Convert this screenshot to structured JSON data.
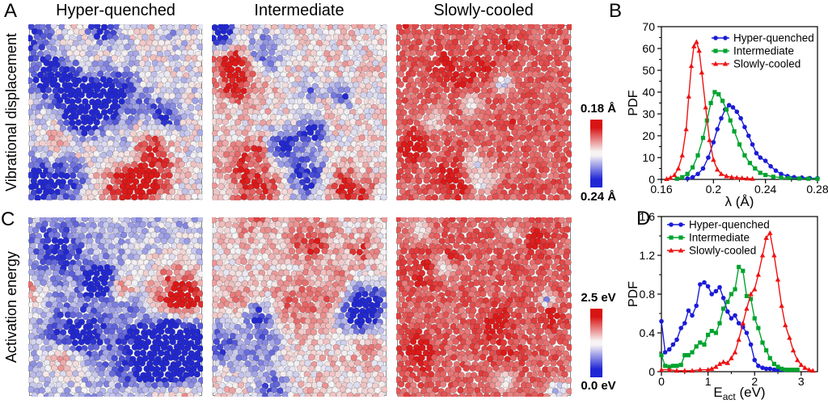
{
  "figure": {
    "column_titles": [
      "Hyper-quenched",
      "Intermediate",
      "Slowly-cooled"
    ],
    "rows": [
      {
        "letter": "A",
        "label": "Vibrational displacement",
        "colorbar": {
          "top": "0.18 Å",
          "bottom": "0.24 Å"
        }
      },
      {
        "letter": "C",
        "label": "Activation energy",
        "colorbar": {
          "top": "2.5 eV",
          "bottom": "0.0 eV"
        }
      }
    ],
    "plot_letters": {
      "top": "B",
      "bottom": "D"
    }
  },
  "colors": {
    "hyper_quenched": "#1b1bd8",
    "intermediate": "#00a32e",
    "slowly_cooled": "#ee1212",
    "map_blue": "#2228d0",
    "map_white": "#f7f5f5",
    "map_red": "#dd1818",
    "frame_gray": "#8a8a8a",
    "axis_black": "#000000"
  },
  "particle_panels": [
    {
      "name": "A-hyper-quenched",
      "row": 0,
      "col": 0,
      "description": "mixed field, blue-dominant with red clusters",
      "seed": 7,
      "base": 0.46,
      "pos_blobs": 8,
      "neg_blobs": 12,
      "pos_amp": 0.42,
      "neg_amp": 0.6,
      "r_min": 10,
      "r_max": 30,
      "noise": 0.17
    },
    {
      "name": "A-intermediate",
      "row": 0,
      "col": 1,
      "description": "balanced red/blue with strong blue clusters",
      "seed": 13,
      "base": 0.56,
      "pos_blobs": 9,
      "neg_blobs": 9,
      "pos_amp": 0.38,
      "neg_amp": 0.62,
      "r_min": 9,
      "r_max": 26,
      "noise": 0.16
    },
    {
      "name": "A-slowly-cooled",
      "row": 0,
      "col": 2,
      "description": "almost entirely red, few pale spots",
      "seed": 21,
      "base": 0.84,
      "pos_blobs": 10,
      "neg_blobs": 5,
      "pos_amp": 0.18,
      "neg_amp": 0.5,
      "r_min": 6,
      "r_max": 13,
      "noise": 0.09
    },
    {
      "name": "C-hyper-quenched",
      "row": 1,
      "col": 0,
      "description": "mostly blue/light blue with sparse pink patches",
      "seed": 31,
      "base": 0.37,
      "pos_blobs": 7,
      "neg_blobs": 11,
      "pos_amp": 0.45,
      "neg_amp": 0.5,
      "r_min": 10,
      "r_max": 30,
      "noise": 0.15
    },
    {
      "name": "C-intermediate",
      "row": 1,
      "col": 1,
      "description": "red-dominant with several deep blue clusters",
      "seed": 41,
      "base": 0.58,
      "pos_blobs": 9,
      "neg_blobs": 6,
      "pos_amp": 0.36,
      "neg_amp": 0.62,
      "r_min": 9,
      "r_max": 24,
      "noise": 0.15
    },
    {
      "name": "C-slowly-cooled",
      "row": 1,
      "col": 2,
      "description": "almost entirely red, few white patches",
      "seed": 51,
      "base": 0.84,
      "pos_blobs": 10,
      "neg_blobs": 6,
      "pos_amp": 0.18,
      "neg_amp": 0.5,
      "r_min": 6,
      "r_max": 14,
      "noise": 0.09
    }
  ],
  "chart_data": [
    {
      "id": "B",
      "type": "line",
      "title": "",
      "xlabel": "λ (Å)",
      "ylabel": "PDF",
      "xlim": [
        0.16,
        0.28
      ],
      "ylim": [
        0,
        70
      ],
      "xticks": [
        0.16,
        0.2,
        0.24,
        0.28
      ],
      "xtick_labels": [
        "0.16",
        "0.2",
        "0.24",
        "0.28"
      ],
      "x_minor_ticks": [
        0.18,
        0.22,
        0.26
      ],
      "yticks": [
        0,
        10,
        20,
        30,
        40,
        50,
        60,
        70
      ],
      "ytick_labels": [
        "0",
        "10",
        "20",
        "30",
        "40",
        "50",
        "60",
        "70"
      ],
      "y_minor_ticks": [
        5,
        15,
        25,
        35,
        45,
        55,
        65
      ],
      "grid": false,
      "legend_pos": "top-right",
      "series": [
        {
          "name": "Hyper-quenched",
          "color": "#1b1bd8",
          "marker": "circle",
          "x": [
            0.18,
            0.184,
            0.188,
            0.192,
            0.196,
            0.2,
            0.203,
            0.206,
            0.209,
            0.212,
            0.215,
            0.218,
            0.221,
            0.224,
            0.227,
            0.23,
            0.233,
            0.236,
            0.24,
            0.244,
            0.248,
            0.252,
            0.257,
            0.262,
            0.268,
            0.274,
            0.28
          ],
          "y": [
            0.4,
            1,
            2.5,
            5,
            10,
            17,
            23,
            28,
            32,
            34,
            33,
            31,
            28,
            24,
            20,
            16,
            12,
            10,
            8.5,
            6,
            4,
            2.5,
            1.5,
            1,
            0.8,
            0.6,
            0.5
          ]
        },
        {
          "name": "Intermediate",
          "color": "#00a32e",
          "marker": "square",
          "x": [
            0.172,
            0.176,
            0.18,
            0.184,
            0.188,
            0.192,
            0.195,
            0.198,
            0.201,
            0.204,
            0.207,
            0.21,
            0.213,
            0.216,
            0.22,
            0.224,
            0.228,
            0.232,
            0.236,
            0.24,
            0.246,
            0.252,
            0.258,
            0.266,
            0.273,
            0.28
          ],
          "y": [
            0.3,
            1,
            2.5,
            5.5,
            11,
            19,
            27,
            35,
            40,
            39,
            36,
            32,
            27,
            22,
            16,
            11,
            7.5,
            5,
            3,
            2,
            1.2,
            0.8,
            0.6,
            0.4,
            0.3,
            0.3
          ]
        },
        {
          "name": "Slowly-cooled",
          "color": "#ee1212",
          "marker": "triangle",
          "x": [
            0.164,
            0.167,
            0.17,
            0.173,
            0.176,
            0.179,
            0.181,
            0.183,
            0.185,
            0.187,
            0.189,
            0.191,
            0.194,
            0.197,
            0.2,
            0.203,
            0.206,
            0.21,
            0.214,
            0.218,
            0.222,
            0.226,
            0.23
          ],
          "y": [
            0.2,
            0.8,
            2,
            5,
            11,
            23,
            38,
            52,
            61,
            63,
            59,
            49,
            33,
            18,
            9,
            4.5,
            2.5,
            1.5,
            1,
            0.8,
            0.6,
            0.4,
            0.3
          ]
        }
      ]
    },
    {
      "id": "D",
      "type": "line",
      "title": "",
      "xlabel": "E_act (eV)",
      "ylabel": "PDF",
      "xlim": [
        0,
        3.35
      ],
      "ylim": [
        0,
        1.6
      ],
      "xticks": [
        0,
        1,
        2,
        3
      ],
      "xtick_labels": [
        "0",
        "1",
        "2",
        "3"
      ],
      "x_minor_ticks": [
        0.5,
        1.5,
        2.5
      ],
      "yticks": [
        0,
        0.4,
        0.8,
        1.2,
        1.6
      ],
      "ytick_labels": [
        "0",
        "0.4",
        "0.8",
        "1.2",
        "1.6"
      ],
      "y_minor_ticks": [
        0.2,
        0.6,
        1.0,
        1.4
      ],
      "grid": false,
      "legend_pos": "top-left",
      "series": [
        {
          "name": "Hyper-quenched",
          "color": "#1b1bd8",
          "marker": "circle",
          "x": [
            0.0,
            0.08,
            0.17,
            0.25,
            0.33,
            0.42,
            0.5,
            0.58,
            0.66,
            0.75,
            0.83,
            0.92,
            1.0,
            1.08,
            1.17,
            1.25,
            1.33,
            1.42,
            1.5,
            1.58,
            1.66,
            1.75,
            1.83,
            1.92,
            2.0,
            2.08,
            2.17,
            2.25,
            2.33,
            2.42,
            2.5,
            2.58,
            2.66
          ],
          "y": [
            0.52,
            0.2,
            0.23,
            0.28,
            0.33,
            0.45,
            0.5,
            0.63,
            0.58,
            0.68,
            0.9,
            0.92,
            0.88,
            0.8,
            0.83,
            0.87,
            0.76,
            0.62,
            0.55,
            0.58,
            0.5,
            0.46,
            0.4,
            0.28,
            0.12,
            0.06,
            0.04,
            0.03,
            0.03,
            0.02,
            0.02,
            0.02,
            0.02
          ]
        },
        {
          "name": "Intermediate",
          "color": "#00a32e",
          "marker": "square",
          "x": [
            0.0,
            0.08,
            0.17,
            0.25,
            0.33,
            0.42,
            0.5,
            0.58,
            0.66,
            0.75,
            0.83,
            0.92,
            1.0,
            1.08,
            1.17,
            1.25,
            1.33,
            1.42,
            1.5,
            1.58,
            1.66,
            1.75,
            1.83,
            1.92,
            2.0,
            2.08,
            2.17,
            2.25,
            2.33,
            2.42,
            2.5,
            2.58,
            2.66,
            2.75,
            2.83,
            2.92
          ],
          "y": [
            0.17,
            0.06,
            0.05,
            0.06,
            0.06,
            0.07,
            0.17,
            0.17,
            0.2,
            0.26,
            0.3,
            0.28,
            0.38,
            0.42,
            0.4,
            0.5,
            0.65,
            0.72,
            0.8,
            0.85,
            1.08,
            1.04,
            0.78,
            0.75,
            0.55,
            0.45,
            0.3,
            0.22,
            0.14,
            0.08,
            0.05,
            0.03,
            0.02,
            0.02,
            0.02,
            0.02
          ]
        },
        {
          "name": "Slowly-cooled",
          "color": "#ee1212",
          "marker": "triangle",
          "x": [
            0.0,
            0.17,
            0.33,
            0.5,
            0.66,
            0.83,
            1.0,
            1.08,
            1.17,
            1.25,
            1.33,
            1.42,
            1.5,
            1.58,
            1.66,
            1.75,
            1.83,
            1.92,
            2.0,
            2.08,
            2.17,
            2.25,
            2.33,
            2.42,
            2.5,
            2.58,
            2.66,
            2.75,
            2.83,
            2.92,
            3.0,
            3.08,
            3.17,
            3.25
          ],
          "y": [
            0.02,
            0.02,
            0.01,
            0.01,
            0.01,
            0.02,
            0.02,
            0.03,
            0.05,
            0.08,
            0.1,
            0.09,
            0.14,
            0.2,
            0.33,
            0.5,
            0.65,
            0.8,
            0.85,
            1.0,
            1.2,
            1.38,
            1.43,
            1.2,
            0.95,
            0.68,
            0.48,
            0.35,
            0.22,
            0.12,
            0.07,
            0.04,
            0.02,
            0.01
          ]
        }
      ]
    }
  ]
}
